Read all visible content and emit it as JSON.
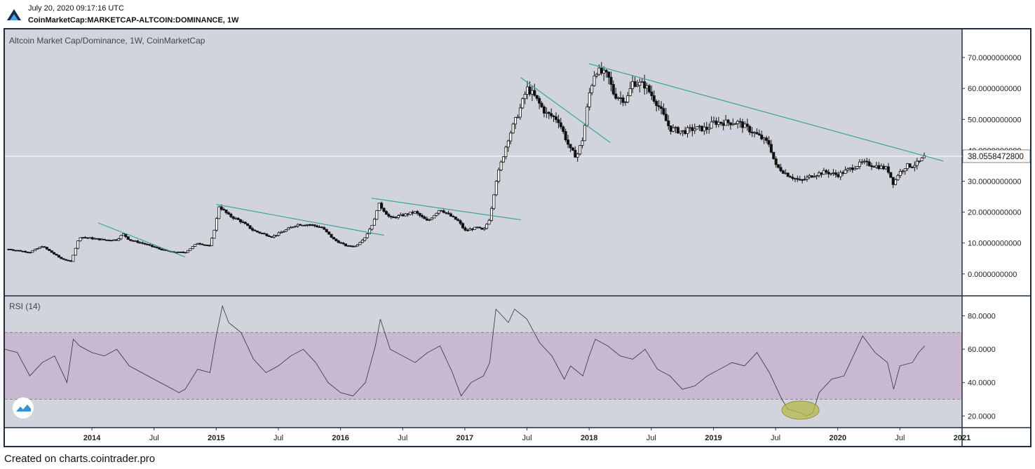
{
  "header": {
    "timestamp": "July 20, 2020 09:17:16 UTC",
    "symbol": "CoinMarketCap:MARKETCAP-ALTCOIN:DOMINANCE, 1W",
    "logo_icon": "tradingview-logo-icon"
  },
  "footer": {
    "text": "Created on charts.cointrader.pro"
  },
  "colors": {
    "panel_bg": "#d1d4dc",
    "rsi_band": "#c8b8d1",
    "trendline": "#3aa39a",
    "candle": "#111111",
    "rsi_line": "#333333",
    "highlight_ellipse": "#b5b84a",
    "frame": "#1f2d3d"
  },
  "chart_data": [
    {
      "type": "candlestick",
      "title": "Altcoin Market Cap/Dominance, 1W, CoinMarketCap",
      "x_ticks": [
        "2014",
        "Jul",
        "2015",
        "Jul",
        "2016",
        "Jul",
        "2017",
        "Jul",
        "2018",
        "Jul",
        "2019",
        "Jul",
        "2020",
        "Jul",
        "2021"
      ],
      "y_ticks": [
        "0.0000000000",
        "10.0000000000",
        "20.0000000000",
        "30.0000000000",
        "40.0000000000",
        "50.0000000000",
        "60.0000000000",
        "70.0000000000"
      ],
      "ylim": [
        -3,
        75
      ],
      "xlim": [
        2013.3,
        2021.0
      ],
      "last_price_label": "38.0558472800",
      "last_price": 38.06,
      "approx_close_path": [
        [
          2013.33,
          8
        ],
        [
          2013.5,
          7
        ],
        [
          2013.6,
          9
        ],
        [
          2013.75,
          5
        ],
        [
          2013.83,
          4
        ],
        [
          2013.9,
          12
        ],
        [
          2014.1,
          11
        ],
        [
          2014.2,
          11
        ],
        [
          2014.25,
          13
        ],
        [
          2014.3,
          11
        ],
        [
          2014.4,
          10
        ],
        [
          2014.55,
          8
        ],
        [
          2014.65,
          7
        ],
        [
          2014.75,
          7
        ],
        [
          2014.85,
          10
        ],
        [
          2014.95,
          9
        ],
        [
          2015.0,
          17
        ],
        [
          2015.02,
          22
        ],
        [
          2015.1,
          19
        ],
        [
          2015.2,
          17
        ],
        [
          2015.3,
          14
        ],
        [
          2015.45,
          12
        ],
        [
          2015.55,
          14
        ],
        [
          2015.65,
          16
        ],
        [
          2015.75,
          16
        ],
        [
          2015.85,
          15
        ],
        [
          2015.95,
          11
        ],
        [
          2016.05,
          9
        ],
        [
          2016.12,
          9
        ],
        [
          2016.2,
          12
        ],
        [
          2016.28,
          18
        ],
        [
          2016.3,
          23
        ],
        [
          2016.4,
          18
        ],
        [
          2016.5,
          19
        ],
        [
          2016.6,
          20
        ],
        [
          2016.7,
          17
        ],
        [
          2016.8,
          21
        ],
        [
          2016.95,
          17
        ],
        [
          2017.0,
          14
        ],
        [
          2017.1,
          15
        ],
        [
          2017.15,
          14
        ],
        [
          2017.2,
          18
        ],
        [
          2017.25,
          30
        ],
        [
          2017.35,
          44
        ],
        [
          2017.45,
          54
        ],
        [
          2017.5,
          60
        ],
        [
          2017.55,
          58
        ],
        [
          2017.65,
          52
        ],
        [
          2017.75,
          50
        ],
        [
          2017.85,
          40
        ],
        [
          2017.9,
          38
        ],
        [
          2017.95,
          44
        ],
        [
          2018.0,
          58
        ],
        [
          2018.05,
          66
        ],
        [
          2018.15,
          64
        ],
        [
          2018.2,
          58
        ],
        [
          2018.3,
          56
        ],
        [
          2018.35,
          62
        ],
        [
          2018.45,
          61
        ],
        [
          2018.55,
          55
        ],
        [
          2018.65,
          47
        ],
        [
          2018.75,
          46
        ],
        [
          2018.85,
          47
        ],
        [
          2018.95,
          47
        ],
        [
          2019.0,
          49
        ],
        [
          2019.1,
          49
        ],
        [
          2019.2,
          49
        ],
        [
          2019.35,
          45
        ],
        [
          2019.45,
          42
        ],
        [
          2019.5,
          35
        ],
        [
          2019.6,
          32
        ],
        [
          2019.7,
          30
        ],
        [
          2019.8,
          32
        ],
        [
          2019.9,
          33
        ],
        [
          2020.0,
          32
        ],
        [
          2020.1,
          34
        ],
        [
          2020.2,
          36
        ],
        [
          2020.3,
          35
        ],
        [
          2020.4,
          34
        ],
        [
          2020.45,
          29
        ],
        [
          2020.48,
          32
        ],
        [
          2020.55,
          35
        ],
        [
          2020.6,
          35
        ],
        [
          2020.65,
          36
        ],
        [
          2020.7,
          38.06
        ]
      ],
      "trendlines": [
        {
          "from": [
            2014.05,
            16.5
          ],
          "to": [
            2014.75,
            5.5
          ]
        },
        {
          "from": [
            2015.0,
            22.5
          ],
          "to": [
            2016.35,
            12.5
          ]
        },
        {
          "from": [
            2016.25,
            24.5
          ],
          "to": [
            2017.45,
            17.5
          ]
        },
        {
          "from": [
            2017.45,
            63.5
          ],
          "to": [
            2018.17,
            42.5
          ]
        },
        {
          "from": [
            2018.0,
            68.0
          ],
          "to": [
            2020.85,
            36.5
          ]
        }
      ],
      "horizontal_line": 38.06
    },
    {
      "type": "line",
      "title": "RSI (14)",
      "y_ticks": [
        "20.0000",
        "40.0000",
        "60.0000",
        "80.0000"
      ],
      "ylim": [
        13,
        92
      ],
      "band": [
        30,
        70
      ],
      "values": [
        [
          2013.3,
          60
        ],
        [
          2013.4,
          58
        ],
        [
          2013.5,
          44
        ],
        [
          2013.6,
          52
        ],
        [
          2013.7,
          56
        ],
        [
          2013.8,
          40
        ],
        [
          2013.85,
          66
        ],
        [
          2013.9,
          62
        ],
        [
          2014.0,
          58
        ],
        [
          2014.1,
          56
        ],
        [
          2014.2,
          60
        ],
        [
          2014.3,
          50
        ],
        [
          2014.4,
          46
        ],
        [
          2014.5,
          42
        ],
        [
          2014.6,
          38
        ],
        [
          2014.7,
          34
        ],
        [
          2014.75,
          36
        ],
        [
          2014.85,
          48
        ],
        [
          2014.95,
          46
        ],
        [
          2015.0,
          68
        ],
        [
          2015.05,
          86
        ],
        [
          2015.1,
          76
        ],
        [
          2015.2,
          70
        ],
        [
          2015.3,
          54
        ],
        [
          2015.4,
          46
        ],
        [
          2015.5,
          50
        ],
        [
          2015.6,
          56
        ],
        [
          2015.7,
          60
        ],
        [
          2015.8,
          52
        ],
        [
          2015.9,
          40
        ],
        [
          2016.0,
          34
        ],
        [
          2016.1,
          32
        ],
        [
          2016.2,
          40
        ],
        [
          2016.28,
          62
        ],
        [
          2016.32,
          78
        ],
        [
          2016.4,
          60
        ],
        [
          2016.5,
          56
        ],
        [
          2016.6,
          52
        ],
        [
          2016.7,
          58
        ],
        [
          2016.8,
          62
        ],
        [
          2016.9,
          46
        ],
        [
          2016.97,
          32
        ],
        [
          2017.05,
          40
        ],
        [
          2017.15,
          44
        ],
        [
          2017.2,
          52
        ],
        [
          2017.25,
          84
        ],
        [
          2017.35,
          76
        ],
        [
          2017.4,
          84
        ],
        [
          2017.5,
          78
        ],
        [
          2017.6,
          64
        ],
        [
          2017.7,
          56
        ],
        [
          2017.8,
          42
        ],
        [
          2017.85,
          50
        ],
        [
          2017.95,
          44
        ],
        [
          2018.0,
          56
        ],
        [
          2018.05,
          66
        ],
        [
          2018.15,
          62
        ],
        [
          2018.25,
          56
        ],
        [
          2018.35,
          54
        ],
        [
          2018.45,
          60
        ],
        [
          2018.55,
          48
        ],
        [
          2018.65,
          44
        ],
        [
          2018.75,
          36
        ],
        [
          2018.85,
          38
        ],
        [
          2018.95,
          44
        ],
        [
          2019.05,
          48
        ],
        [
          2019.15,
          52
        ],
        [
          2019.25,
          50
        ],
        [
          2019.35,
          58
        ],
        [
          2019.45,
          46
        ],
        [
          2019.55,
          30
        ],
        [
          2019.6,
          24
        ],
        [
          2019.7,
          22
        ],
        [
          2019.75,
          20
        ],
        [
          2019.8,
          22
        ],
        [
          2019.85,
          34
        ],
        [
          2019.95,
          42
        ],
        [
          2020.05,
          44
        ],
        [
          2020.15,
          60
        ],
        [
          2020.2,
          68
        ],
        [
          2020.3,
          58
        ],
        [
          2020.4,
          52
        ],
        [
          2020.45,
          36
        ],
        [
          2020.5,
          50
        ],
        [
          2020.6,
          52
        ],
        [
          2020.65,
          58
        ],
        [
          2020.7,
          62
        ]
      ],
      "highlight": {
        "x": [
          2019.55,
          2019.85
        ],
        "y": [
          18,
          29
        ]
      }
    }
  ]
}
